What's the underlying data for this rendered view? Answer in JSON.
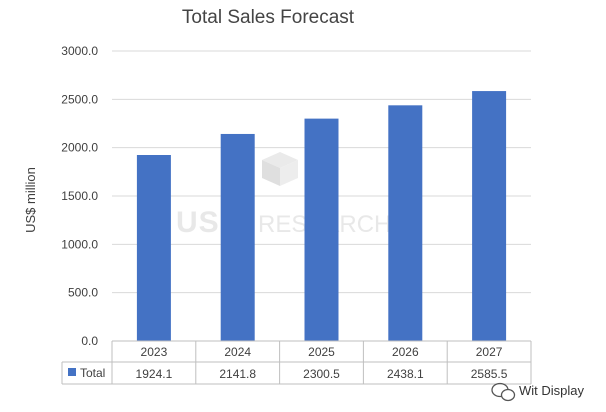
{
  "chart_data": {
    "type": "bar",
    "title": "Total Sales Forecast",
    "ylabel": "US$ million",
    "xlabel": "",
    "categories": [
      "2023",
      "2024",
      "2025",
      "2026",
      "2027"
    ],
    "series": [
      {
        "name": "Total",
        "values": [
          1924.1,
          2141.8,
          2300.5,
          2438.1,
          2585.5
        ],
        "color": "#4472c4"
      }
    ],
    "data_table_values": [
      "1924.1",
      "2141.8",
      "2300.5",
      "2438.1",
      "2585.5"
    ],
    "ylim": [
      0,
      3000
    ],
    "yticks": [
      "0.0",
      "500.0",
      "1000.0",
      "1500.0",
      "2000.0",
      "2500.0",
      "3000.0"
    ],
    "grid": true,
    "legend": "data-table"
  },
  "watermark": {
    "logo_text": "USI",
    "logo_subtext": "RESEARCH",
    "brand_text": "Wit Display"
  }
}
